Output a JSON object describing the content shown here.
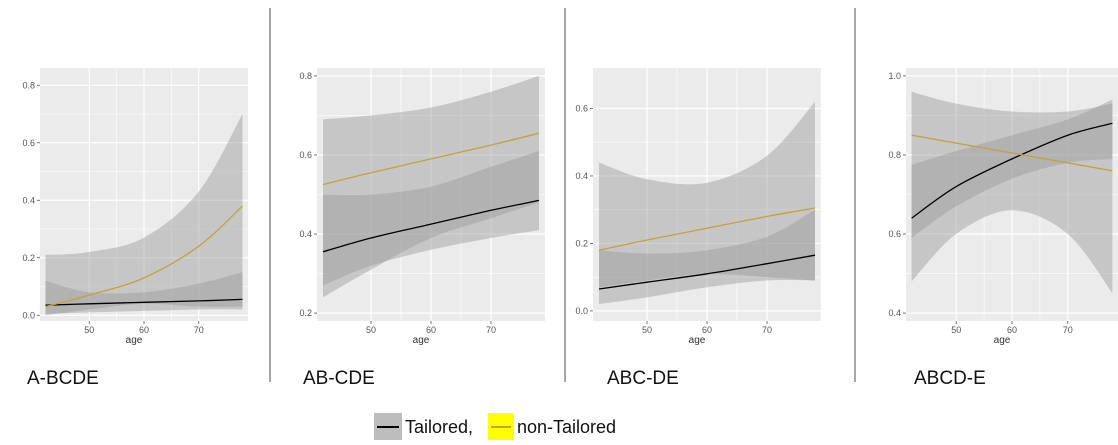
{
  "chart_data": [
    {
      "type": "line",
      "title": "A-BCDE",
      "xlabel": "age",
      "xlim": [
        41,
        79
      ],
      "ylim": [
        -0.02,
        0.86
      ],
      "xticks": [
        50,
        60,
        70
      ],
      "yticks": [
        0.0,
        0.2,
        0.4,
        0.6,
        0.8
      ],
      "ytick_labels": [
        "0.0",
        "0.2",
        "0.4",
        "0.6",
        "0.8"
      ],
      "series": [
        {
          "name": "Tailored",
          "x": [
            42,
            50,
            60,
            70,
            78
          ],
          "y": [
            0.035,
            0.04,
            0.045,
            0.05,
            0.055
          ],
          "lower": [
            0.005,
            0.01,
            0.015,
            0.02,
            0.02
          ],
          "upper": [
            0.12,
            0.08,
            0.08,
            0.11,
            0.15
          ]
        },
        {
          "name": "non-Tailored",
          "x": [
            42,
            50,
            60,
            70,
            78
          ],
          "y": [
            0.03,
            0.07,
            0.13,
            0.24,
            0.38
          ],
          "lower": [
            0.0,
            0.02,
            0.04,
            0.03,
            0.03
          ],
          "upper": [
            0.21,
            0.22,
            0.27,
            0.43,
            0.7
          ]
        }
      ]
    },
    {
      "type": "line",
      "title": "AB-CDE",
      "xlabel": "age",
      "xlim": [
        41,
        79
      ],
      "ylim": [
        0.18,
        0.82
      ],
      "xticks": [
        50,
        60,
        70
      ],
      "yticks": [
        0.2,
        0.4,
        0.6,
        0.8
      ],
      "ytick_labels": [
        "0.2",
        "0.4",
        "0.6",
        "0.8"
      ],
      "series": [
        {
          "name": "Tailored",
          "x": [
            42,
            50,
            60,
            70,
            78
          ],
          "y": [
            0.355,
            0.39,
            0.425,
            0.46,
            0.485
          ],
          "lower": [
            0.27,
            0.32,
            0.36,
            0.39,
            0.41
          ],
          "upper": [
            0.5,
            0.5,
            0.52,
            0.57,
            0.61
          ]
        },
        {
          "name": "non-Tailored",
          "x": [
            42,
            50,
            60,
            70,
            78
          ],
          "y": [
            0.525,
            0.555,
            0.59,
            0.625,
            0.655
          ],
          "lower": [
            0.24,
            0.31,
            0.39,
            0.44,
            0.48
          ],
          "upper": [
            0.69,
            0.7,
            0.72,
            0.76,
            0.8
          ]
        }
      ]
    },
    {
      "type": "line",
      "title": "ABC-DE",
      "xlabel": "age",
      "xlim": [
        41,
        79
      ],
      "ylim": [
        -0.03,
        0.72
      ],
      "xticks": [
        50,
        60,
        70
      ],
      "yticks": [
        0.0,
        0.2,
        0.4,
        0.6
      ],
      "ytick_labels": [
        "0.0",
        "0.2",
        "0.4",
        "0.6"
      ],
      "series": [
        {
          "name": "Tailored",
          "x": [
            42,
            50,
            60,
            70,
            78
          ],
          "y": [
            0.065,
            0.085,
            0.11,
            0.14,
            0.165
          ],
          "lower": [
            0.02,
            0.04,
            0.07,
            0.09,
            0.09
          ],
          "upper": [
            0.18,
            0.17,
            0.18,
            0.22,
            0.3
          ]
        },
        {
          "name": "non-Tailored",
          "x": [
            42,
            50,
            60,
            70,
            78
          ],
          "y": [
            0.18,
            0.21,
            0.245,
            0.28,
            0.305
          ],
          "lower": [
            0.07,
            0.09,
            0.11,
            0.1,
            0.09
          ],
          "upper": [
            0.44,
            0.39,
            0.38,
            0.46,
            0.62
          ]
        }
      ]
    },
    {
      "type": "line",
      "title": "ABCD-E",
      "xlabel": "age",
      "xlim": [
        41,
        79
      ],
      "ylim": [
        0.38,
        1.02
      ],
      "xticks": [
        50,
        60,
        70
      ],
      "yticks": [
        0.4,
        0.6,
        0.8,
        1.0
      ],
      "ytick_labels": [
        "0.4",
        "0.6",
        "0.8",
        "1.0"
      ],
      "series": [
        {
          "name": "Tailored",
          "x": [
            42,
            50,
            60,
            70,
            78
          ],
          "y": [
            0.64,
            0.72,
            0.79,
            0.85,
            0.88
          ],
          "lower": [
            0.59,
            0.67,
            0.74,
            0.78,
            0.79
          ],
          "upper": [
            0.775,
            0.81,
            0.85,
            0.89,
            0.94
          ]
        },
        {
          "name": "non-Tailored",
          "x": [
            42,
            50,
            60,
            70,
            78
          ],
          "y": [
            0.85,
            0.83,
            0.805,
            0.78,
            0.76
          ],
          "lower": [
            0.48,
            0.6,
            0.66,
            0.6,
            0.45
          ],
          "upper": [
            0.96,
            0.93,
            0.91,
            0.91,
            0.93
          ]
        }
      ]
    }
  ],
  "legend": {
    "tailored_label": "Tailored,",
    "non_tailored_label": "non-Tailored",
    "tailored_line_color": "#000000",
    "non_tailored_line_color": "#c8a038",
    "non_tailored_swatch_color": "#ffff00",
    "band_swatch_color": "#bdbdbd"
  },
  "colors": {
    "panel_bg": "#ebebeb",
    "grid": "#ffffff",
    "band": "#999999",
    "band_opacity": 0.45
  }
}
